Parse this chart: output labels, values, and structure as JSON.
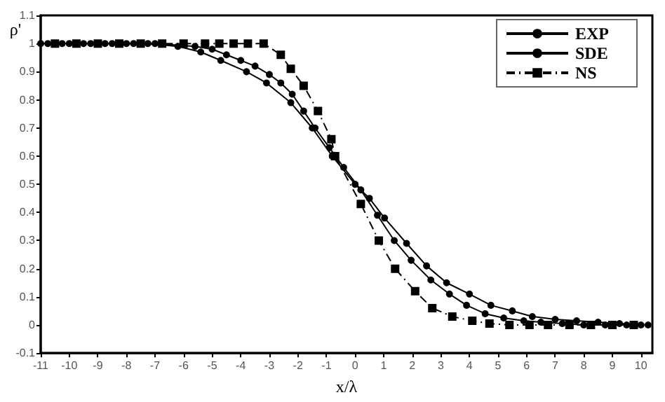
{
  "chart_data": {
    "type": "line",
    "xlabel": "x/λ",
    "ylabel": "ρ'",
    "xlim": [
      -11,
      10.4
    ],
    "xticks": [
      -11,
      -10,
      -9,
      -8,
      -7,
      -6,
      -5,
      -4,
      -3,
      -2,
      -1,
      0,
      1,
      2,
      3,
      4,
      5,
      6,
      7,
      8,
      9,
      10
    ],
    "ylim": [
      -0.1,
      1.1
    ],
    "yticks": [
      -0.1,
      0,
      0.1,
      0.2,
      0.3,
      0.4,
      0.5,
      0.6,
      0.7,
      0.8,
      0.9,
      1,
      1.1
    ],
    "grid": false,
    "legend": "top right",
    "series": [
      {
        "name": "EXP",
        "color": "#000000",
        "marker": "circle",
        "line_style": "solid",
        "x": [
          -11,
          -10.25,
          -9.5,
          -8.75,
          -8,
          -7.25,
          -6.2,
          -5.4,
          -4.7,
          -3.8,
          -3.1,
          -2.25,
          -1.5,
          -0.8,
          0,
          0.5,
          1.03,
          1.8,
          2.5,
          3.2,
          4,
          4.75,
          5.5,
          6.2,
          7,
          7.75,
          8.5,
          9.25,
          10
        ],
        "values": [
          1,
          1,
          1,
          1,
          1,
          1,
          0.99,
          0.97,
          0.94,
          0.9,
          0.86,
          0.79,
          0.7,
          0.6,
          0.5,
          0.45,
          0.38,
          0.29,
          0.21,
          0.15,
          0.11,
          0.07,
          0.05,
          0.03,
          0.02,
          0.015,
          0.01,
          0.005,
          0
        ]
      },
      {
        "name": "SDE",
        "color": "#000000",
        "marker": "circle",
        "line_style": "solid",
        "x": [
          -10.75,
          -10,
          -9.25,
          -8.5,
          -7.75,
          -7,
          -5.6,
          -5,
          -4.5,
          -4,
          -3.5,
          -3,
          -2.6,
          -2.2,
          -1.8,
          -1.4,
          -0.9,
          -0.4,
          0.2,
          0.78,
          1.37,
          1.96,
          2.65,
          3.3,
          3.9,
          4.55,
          5.2,
          5.9,
          6.5,
          7.25,
          8,
          8.75,
          9.5,
          10.25
        ],
        "values": [
          1,
          1,
          1,
          1,
          1,
          1,
          0.99,
          0.98,
          0.96,
          0.94,
          0.92,
          0.89,
          0.86,
          0.82,
          0.76,
          0.7,
          0.63,
          0.56,
          0.48,
          0.39,
          0.3,
          0.23,
          0.16,
          0.11,
          0.07,
          0.04,
          0.025,
          0.015,
          0.01,
          0.005,
          0,
          0,
          0,
          0
        ]
      },
      {
        "name": "NS",
        "color": "#000000",
        "marker": "square",
        "line_style": "dashed",
        "x": [
          -10.5,
          -9.75,
          -9,
          -8.25,
          -7.5,
          -6.75,
          -6,
          -5.25,
          -4.75,
          -4.25,
          -3.75,
          -3.2,
          -2.6,
          -2.25,
          -1.8,
          -1.3,
          -0.83,
          -0.7,
          0.2,
          0.83,
          1.4,
          2.1,
          2.7,
          3.4,
          4.1,
          4.7,
          5.4,
          6.1,
          6.75,
          7.5,
          8.25,
          9,
          9.75
        ],
        "values": [
          1,
          1,
          1,
          1,
          1,
          1,
          1,
          1,
          1,
          1,
          1,
          1,
          0.96,
          0.91,
          0.85,
          0.76,
          0.66,
          0.6,
          0.43,
          0.3,
          0.2,
          0.12,
          0.06,
          0.03,
          0.015,
          0.005,
          0,
          0,
          0,
          0,
          0,
          0,
          0
        ]
      }
    ]
  }
}
